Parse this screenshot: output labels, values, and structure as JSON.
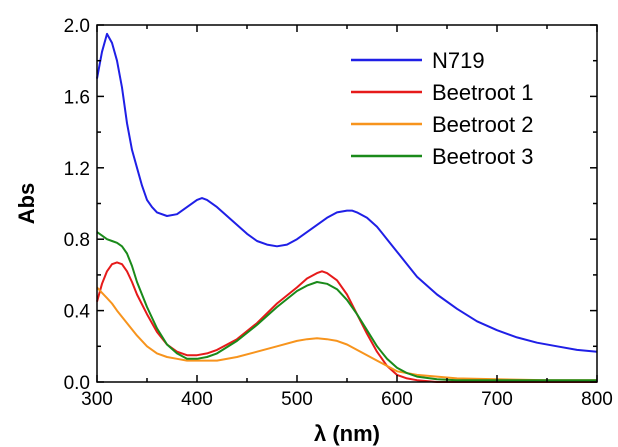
{
  "chart_data": {
    "type": "line",
    "title": "",
    "xlabel": "λ (nm)",
    "ylabel": "Abs",
    "xlim": [
      300,
      800
    ],
    "ylim": [
      0,
      2.0
    ],
    "x_ticks": [
      300,
      400,
      500,
      600,
      700,
      800
    ],
    "x_tick_labels": [
      "300",
      "400",
      "500",
      "600",
      "700",
      "800"
    ],
    "y_ticks": [
      0,
      0.4,
      0.8,
      1.2,
      1.6,
      2.0
    ],
    "y_tick_labels": [
      "0.0",
      "0.4",
      "0.8",
      "1.2",
      "1.6",
      "2.0"
    ],
    "grid": false,
    "legend_position": "top-right",
    "series": [
      {
        "name": "N719",
        "color": "#1f1fe6",
        "x": [
          300,
          305,
          310,
          315,
          320,
          325,
          330,
          335,
          340,
          345,
          350,
          355,
          360,
          370,
          380,
          390,
          400,
          405,
          410,
          420,
          430,
          440,
          450,
          460,
          470,
          480,
          490,
          500,
          510,
          520,
          530,
          540,
          550,
          555,
          560,
          570,
          580,
          590,
          600,
          610,
          620,
          640,
          660,
          680,
          700,
          720,
          740,
          760,
          780,
          800
        ],
        "y": [
          1.7,
          1.85,
          1.95,
          1.9,
          1.8,
          1.65,
          1.45,
          1.3,
          1.2,
          1.1,
          1.02,
          0.98,
          0.95,
          0.93,
          0.94,
          0.98,
          1.02,
          1.03,
          1.02,
          0.98,
          0.93,
          0.88,
          0.83,
          0.79,
          0.77,
          0.76,
          0.77,
          0.8,
          0.84,
          0.88,
          0.92,
          0.95,
          0.96,
          0.96,
          0.95,
          0.92,
          0.87,
          0.8,
          0.73,
          0.66,
          0.59,
          0.49,
          0.41,
          0.34,
          0.29,
          0.25,
          0.22,
          0.2,
          0.18,
          0.17
        ]
      },
      {
        "name": "Beetroot 1",
        "color": "#e61a1a",
        "x": [
          300,
          305,
          310,
          315,
          320,
          325,
          330,
          335,
          340,
          350,
          360,
          370,
          380,
          390,
          400,
          410,
          420,
          440,
          460,
          480,
          500,
          510,
          520,
          525,
          530,
          540,
          550,
          560,
          570,
          580,
          590,
          600,
          610,
          620,
          630,
          640,
          660,
          680,
          700,
          720,
          750,
          800
        ],
        "y": [
          0.45,
          0.55,
          0.62,
          0.66,
          0.67,
          0.66,
          0.62,
          0.56,
          0.49,
          0.38,
          0.28,
          0.21,
          0.17,
          0.15,
          0.15,
          0.16,
          0.18,
          0.24,
          0.33,
          0.44,
          0.53,
          0.58,
          0.61,
          0.62,
          0.61,
          0.57,
          0.49,
          0.38,
          0.27,
          0.17,
          0.09,
          0.04,
          0.02,
          0.01,
          0.005,
          0.0,
          0.0,
          0.0,
          0.0,
          0.0,
          0.0,
          0.0
        ]
      },
      {
        "name": "Beetroot 2",
        "color": "#f7941d",
        "x": [
          300,
          305,
          310,
          315,
          320,
          330,
          340,
          350,
          360,
          370,
          380,
          390,
          400,
          420,
          440,
          460,
          480,
          500,
          510,
          520,
          530,
          540,
          550,
          560,
          570,
          580,
          590,
          600,
          620,
          640,
          660,
          700,
          750,
          800
        ],
        "y": [
          0.53,
          0.5,
          0.47,
          0.44,
          0.4,
          0.33,
          0.26,
          0.2,
          0.16,
          0.14,
          0.13,
          0.12,
          0.12,
          0.12,
          0.14,
          0.17,
          0.2,
          0.23,
          0.24,
          0.245,
          0.24,
          0.23,
          0.21,
          0.18,
          0.15,
          0.12,
          0.09,
          0.06,
          0.04,
          0.03,
          0.02,
          0.015,
          0.01,
          0.01
        ]
      },
      {
        "name": "Beetroot 3",
        "color": "#1a8a1a",
        "x": [
          300,
          305,
          310,
          315,
          320,
          325,
          330,
          335,
          340,
          350,
          360,
          370,
          380,
          390,
          400,
          410,
          420,
          440,
          460,
          480,
          500,
          510,
          520,
          530,
          540,
          550,
          560,
          570,
          580,
          590,
          600,
          610,
          620,
          640,
          660,
          680,
          700,
          750,
          800
        ],
        "y": [
          0.84,
          0.82,
          0.8,
          0.79,
          0.78,
          0.76,
          0.72,
          0.65,
          0.56,
          0.42,
          0.3,
          0.21,
          0.16,
          0.13,
          0.13,
          0.14,
          0.16,
          0.23,
          0.32,
          0.42,
          0.51,
          0.54,
          0.56,
          0.55,
          0.52,
          0.46,
          0.38,
          0.29,
          0.2,
          0.13,
          0.08,
          0.05,
          0.03,
          0.015,
          0.01,
          0.01,
          0.01,
          0.01,
          0.01
        ]
      }
    ]
  }
}
